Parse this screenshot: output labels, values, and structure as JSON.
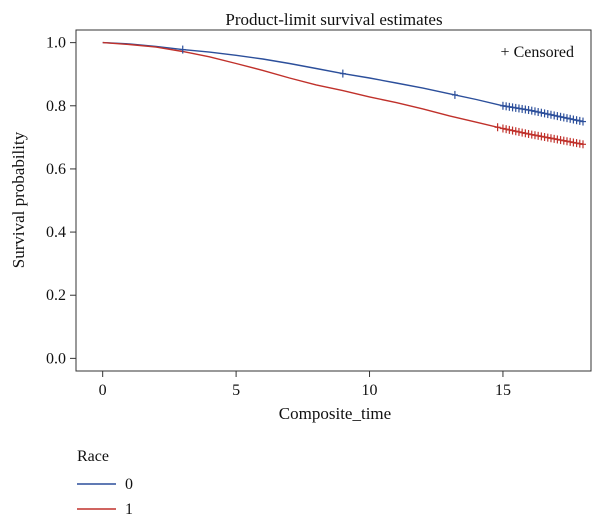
{
  "chart_data": {
    "type": "line",
    "title": "Product-limit survival estimates",
    "xlabel": "Composite_time",
    "ylabel": "Survival probability",
    "xlim": [
      -1,
      18.3
    ],
    "ylim": [
      -0.04,
      1.04
    ],
    "x_ticks": [
      "0",
      "5",
      "10",
      "15"
    ],
    "x_tick_values": [
      0,
      5,
      10,
      15
    ],
    "y_ticks": [
      "0.0",
      "0.2",
      "0.4",
      "0.6",
      "0.8",
      "1.0"
    ],
    "y_tick_values": [
      0,
      0.2,
      0.4,
      0.6,
      0.8,
      1.0
    ],
    "grid": false,
    "censor_note": "+ Censored",
    "legend": {
      "title": "Race",
      "position": "bottom-left",
      "entries": [
        {
          "label": "0",
          "color": "#2c4f9b"
        },
        {
          "label": "1",
          "color": "#c0312b"
        }
      ]
    },
    "series": [
      {
        "name": "0",
        "color": "#2c4f9b",
        "x": [
          0,
          1,
          2,
          3,
          4,
          5,
          6,
          7,
          8,
          9,
          10,
          11,
          12,
          13,
          14,
          15,
          16,
          17,
          18
        ],
        "y": [
          1.0,
          0.996,
          0.988,
          0.978,
          0.97,
          0.96,
          0.948,
          0.934,
          0.918,
          0.902,
          0.888,
          0.872,
          0.856,
          0.838,
          0.82,
          0.8,
          0.786,
          0.768,
          0.75
        ],
        "censored_x": [
          3,
          9,
          13.2
        ],
        "dense_censoring_from": 15
      },
      {
        "name": "1",
        "color": "#c0312b",
        "x": [
          0,
          1,
          2,
          3,
          4,
          5,
          6,
          7,
          8,
          9,
          10,
          11,
          12,
          13,
          14,
          15,
          16,
          17,
          18
        ],
        "y": [
          1.0,
          0.994,
          0.986,
          0.972,
          0.955,
          0.934,
          0.912,
          0.888,
          0.866,
          0.848,
          0.828,
          0.81,
          0.79,
          0.768,
          0.748,
          0.728,
          0.71,
          0.694,
          0.678
        ],
        "censored_x": [
          14.8
        ],
        "dense_censoring_from": 15
      }
    ]
  }
}
